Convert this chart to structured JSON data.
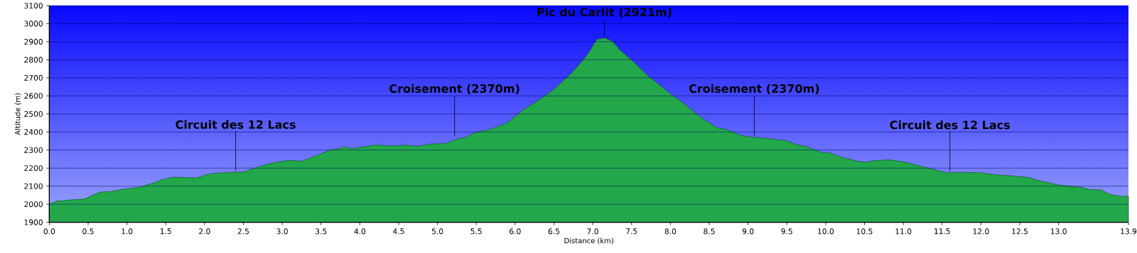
{
  "chart_data": {
    "type": "area",
    "xlabel": "Distance   (km)",
    "ylabel": "Altitude (m)",
    "x": [
      0,
      0.1,
      0.2,
      0.3,
      0.45,
      0.55,
      0.65,
      0.8,
      0.95,
      1.15,
      1.25,
      1.35,
      1.45,
      1.6,
      1.75,
      1.9,
      2.0,
      2.1,
      2.4,
      2.5,
      2.6,
      2.75,
      2.95,
      3.1,
      3.25,
      3.4,
      3.55,
      3.65,
      3.75,
      3.8,
      3.9,
      4.0,
      4.2,
      4.4,
      4.5,
      4.6,
      4.75,
      4.9,
      5.1,
      5.25,
      5.35,
      5.5,
      5.7,
      5.9,
      6.0,
      6.1,
      6.3,
      6.5,
      6.7,
      6.85,
      6.95,
      7.05,
      7.15,
      7.25,
      7.35,
      7.5,
      7.7,
      7.9,
      8.0,
      8.2,
      8.4,
      8.6,
      8.75,
      8.9,
      9.05,
      9.1,
      9.3,
      9.5,
      9.6,
      9.75,
      9.95,
      10.05,
      10.2,
      10.4,
      10.5,
      10.6,
      10.8,
      11.0,
      11.2,
      11.4,
      11.55,
      11.8,
      12.0,
      12.2,
      12.4,
      12.6,
      12.8,
      13.0,
      13.3,
      13.4,
      13.55,
      13.65,
      13.8,
      13.9
    ],
    "series": [
      {
        "color": "#22a84a",
        "values": [
          2000,
          2018,
          2020,
          2025,
          2028,
          2048,
          2067,
          2070,
          2083,
          2093,
          2107,
          2118,
          2136,
          2150,
          2148,
          2146,
          2160,
          2171,
          2178,
          2178,
          2193,
          2215,
          2235,
          2243,
          2238,
          2263,
          2288,
          2305,
          2308,
          2318,
          2307,
          2314,
          2328,
          2323,
          2325,
          2327,
          2321,
          2333,
          2336,
          2361,
          2368,
          2399,
          2417,
          2451,
          2486,
          2521,
          2576,
          2636,
          2715,
          2785,
          2840,
          2912,
          2921,
          2903,
          2854,
          2799,
          2715,
          2646,
          2611,
          2549,
          2479,
          2424,
          2410,
          2382,
          2371,
          2371,
          2361,
          2351,
          2333,
          2319,
          2287,
          2285,
          2260,
          2239,
          2232,
          2240,
          2246,
          2235,
          2213,
          2192,
          2176,
          2176,
          2174,
          2163,
          2157,
          2149,
          2125,
          2107,
          2093,
          2081,
          2079,
          2056,
          2044,
          2044
        ]
      }
    ],
    "xlim": [
      0,
      13.9
    ],
    "ylim": [
      1900,
      3100
    ],
    "xticks": [
      {
        "value": 0,
        "label": "0.0"
      },
      0.5,
      {
        "value": 1,
        "label": "1.0"
      },
      1.5,
      {
        "value": 2,
        "label": "2.0"
      },
      2.5,
      {
        "value": 3,
        "label": "3.0"
      },
      3.5,
      {
        "value": 4,
        "label": "4.0"
      },
      4.5,
      {
        "value": 5,
        "label": "5.0"
      },
      5.5,
      {
        "value": 6,
        "label": "6.0"
      },
      6.5,
      {
        "value": 7,
        "label": "7.0"
      },
      7.5,
      {
        "value": 8,
        "label": "8.0"
      },
      8.5,
      {
        "value": 9,
        "label": "9.0"
      },
      9.5,
      {
        "value": 10,
        "label": "10.0"
      },
      10.5,
      {
        "value": 11,
        "label": "11.0"
      },
      11.5,
      {
        "value": 12,
        "label": "12.0"
      },
      12.5,
      {
        "value": 13,
        "label": "13.0"
      },
      13.9
    ],
    "yticks": [
      1900,
      2000,
      2100,
      2200,
      2300,
      2400,
      2500,
      2600,
      2700,
      2800,
      2900,
      3000,
      3100
    ],
    "grid": "y",
    "annotations": [
      {
        "text": "Circuit des 12 Lacs",
        "x": 2.4,
        "y": 2178
      },
      {
        "text": "Croisement (2370m)",
        "x": 5.22,
        "y": 2370
      },
      {
        "text": "Pic du Carlit (2921m)",
        "x": 7.15,
        "y": 2921
      },
      {
        "text": "Croisement (2370m)",
        "x": 9.08,
        "y": 2370
      },
      {
        "text": "Circuit des 12 Lacs",
        "x": 11.6,
        "y": 2176
      }
    ]
  }
}
